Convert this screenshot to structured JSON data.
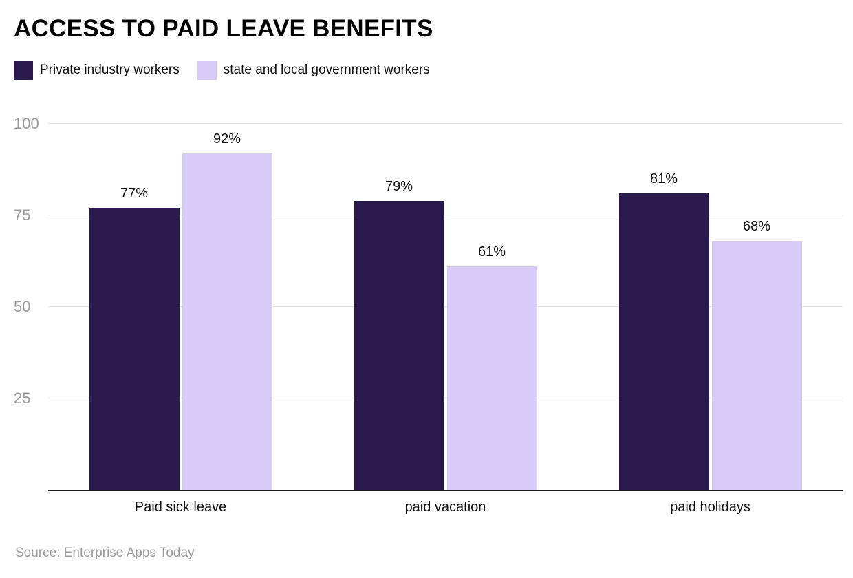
{
  "chart_data": {
    "type": "bar",
    "title": "ACCESS TO PAID LEAVE BENEFITS",
    "categories": [
      "Paid sick leave",
      "paid vacation",
      "paid holidays"
    ],
    "series": [
      {
        "name": "Private industry workers",
        "color": "#2a1a4e",
        "values": [
          77,
          79,
          81
        ]
      },
      {
        "name": "state and local government workers",
        "color": "#d9cbf7",
        "values": [
          92,
          61,
          68
        ]
      }
    ],
    "value_suffix": "%",
    "yticks": [
      25,
      50,
      75,
      100
    ],
    "ylim": [
      0,
      100
    ],
    "grid": true,
    "legend_position": "top-left",
    "xlabel": "",
    "ylabel": "",
    "source": "Source: Enterprise Apps Today"
  }
}
